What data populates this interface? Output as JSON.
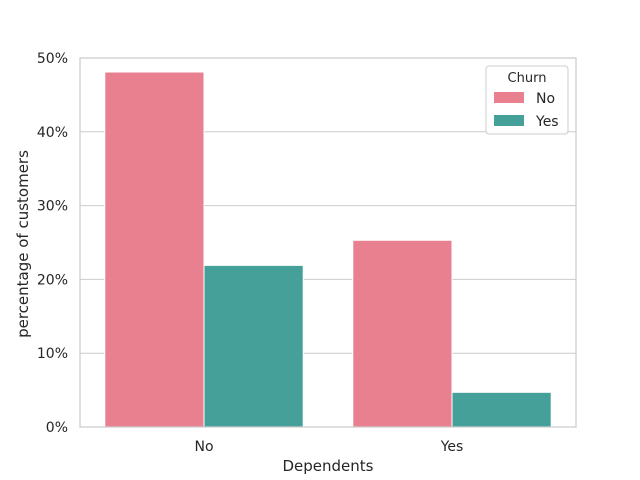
{
  "chart_data": {
    "type": "bar",
    "xlabel": "Dependents",
    "ylabel": "percentage of customers",
    "categories": [
      "No",
      "Yes"
    ],
    "series": [
      {
        "name": "No",
        "values": [
          48.1,
          25.3
        ],
        "color": "#e8808f"
      },
      {
        "name": "Yes",
        "values": [
          21.9,
          4.7
        ],
        "color": "#45a09a"
      }
    ],
    "ylim": [
      0,
      50
    ],
    "yticks": [
      "0%",
      "10%",
      "20%",
      "30%",
      "40%",
      "50%"
    ],
    "ytick_values": [
      0,
      10,
      20,
      30,
      40,
      50
    ],
    "grid": "horizontal",
    "legend": {
      "title": "Churn",
      "placement": "top-right"
    }
  }
}
